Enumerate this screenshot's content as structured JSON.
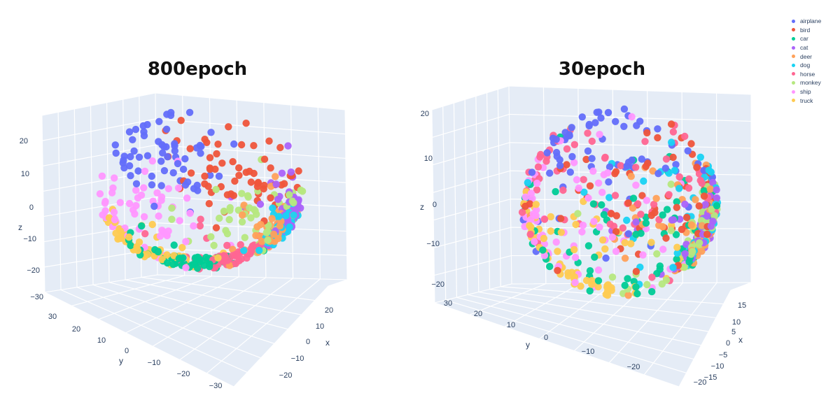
{
  "chart_data": [
    {
      "type": "scatter",
      "title": "800epoch",
      "projection": "3d",
      "axes": {
        "x": {
          "label": "x",
          "ticks": [
            20,
            10,
            0,
            -10,
            -20
          ]
        },
        "y": {
          "label": "y",
          "ticks": [
            30,
            20,
            10,
            0,
            -10,
            -20,
            -30
          ]
        },
        "z": {
          "label": "z",
          "ticks": [
            20,
            10,
            0,
            -10,
            -20,
            -30
          ]
        }
      },
      "grid": true,
      "series": [
        {
          "name": "airplane",
          "color": "#636efa",
          "center": [
            -6,
            20,
            18
          ]
        },
        {
          "name": "bird",
          "color": "#ef553b",
          "center": [
            0,
            5,
            18
          ]
        },
        {
          "name": "car",
          "color": "#00cc96",
          "center": [
            -10,
            10,
            -25
          ]
        },
        {
          "name": "cat",
          "color": "#ab63fa",
          "center": [
            8,
            -12,
            8
          ]
        },
        {
          "name": "deer",
          "color": "#ffa15a",
          "center": [
            4,
            -10,
            0
          ]
        },
        {
          "name": "dog",
          "color": "#19d3f3",
          "center": [
            6,
            -15,
            5
          ]
        },
        {
          "name": "horse",
          "color": "#ff6692",
          "center": [
            -6,
            -6,
            -14
          ]
        },
        {
          "name": "monkey",
          "color": "#b6e880",
          "center": [
            2,
            0,
            6
          ]
        },
        {
          "name": "ship",
          "color": "#ff97ff",
          "center": [
            -10,
            22,
            -5
          ]
        },
        {
          "name": "truck",
          "color": "#fecb52",
          "center": [
            -14,
            18,
            -18
          ]
        }
      ]
    },
    {
      "type": "scatter",
      "title": "30epoch",
      "projection": "3d",
      "axes": {
        "x": {
          "label": "x",
          "ticks": [
            15,
            10,
            5,
            0,
            -5,
            -10,
            -15,
            -20
          ]
        },
        "y": {
          "label": "y",
          "ticks": [
            30,
            20,
            10,
            0,
            -10,
            -20
          ]
        },
        "z": {
          "label": "z",
          "ticks": [
            20,
            10,
            0,
            -10,
            -20
          ]
        }
      },
      "grid": true,
      "series": [
        {
          "name": "airplane",
          "color": "#636efa",
          "center": [
            -4,
            20,
            16
          ]
        },
        {
          "name": "bird",
          "color": "#ef553b",
          "center": [
            0,
            8,
            4
          ]
        },
        {
          "name": "car",
          "color": "#00cc96",
          "center": [
            -2,
            14,
            -4
          ]
        },
        {
          "name": "cat",
          "color": "#ab63fa",
          "center": [
            4,
            -8,
            0
          ]
        },
        {
          "name": "deer",
          "color": "#ffa15a",
          "center": [
            2,
            0,
            2
          ]
        },
        {
          "name": "dog",
          "color": "#19d3f3",
          "center": [
            2,
            -4,
            4
          ]
        },
        {
          "name": "horse",
          "color": "#ff6692",
          "center": [
            -2,
            18,
            8
          ]
        },
        {
          "name": "monkey",
          "color": "#b6e880",
          "center": [
            4,
            -10,
            -2
          ]
        },
        {
          "name": "ship",
          "color": "#ff97ff",
          "center": [
            -6,
            24,
            -2
          ]
        },
        {
          "name": "truck",
          "color": "#fecb52",
          "center": [
            -6,
            22,
            -12
          ]
        }
      ]
    }
  ],
  "legend": {
    "placement": "top-right",
    "items": [
      {
        "label": "airplane",
        "color": "#636efa"
      },
      {
        "label": "bird",
        "color": "#ef553b"
      },
      {
        "label": "car",
        "color": "#00cc96"
      },
      {
        "label": "cat",
        "color": "#ab63fa"
      },
      {
        "label": "deer",
        "color": "#ffa15a"
      },
      {
        "label": "dog",
        "color": "#19d3f3"
      },
      {
        "label": "horse",
        "color": "#ff6692"
      },
      {
        "label": "monkey",
        "color": "#b6e880"
      },
      {
        "label": "ship",
        "color": "#ff97ff"
      },
      {
        "label": "truck",
        "color": "#fecb52"
      }
    ]
  }
}
